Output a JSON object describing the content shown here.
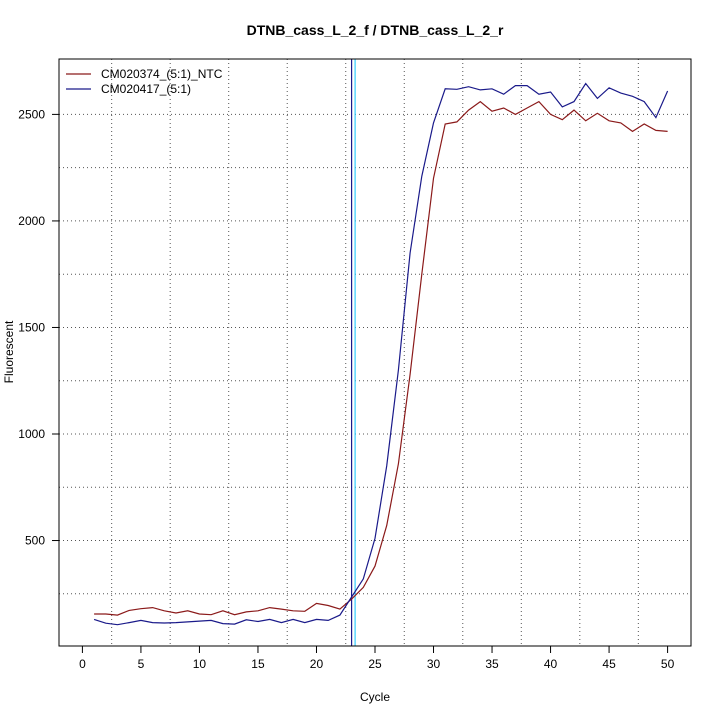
{
  "chart_data": {
    "type": "line",
    "title": "DTNB_cass_L_2_f / DTNB_cass_L_2_r",
    "xlabel": "Cycle",
    "ylabel": "Fluorescent",
    "xlim": [
      -2,
      52
    ],
    "ylim": [
      5,
      2760
    ],
    "x_ticks": [
      0,
      5,
      10,
      15,
      20,
      25,
      30,
      35,
      40,
      45,
      50
    ],
    "x_tick_labels": [
      "0",
      "5",
      "10",
      "15",
      "20",
      "25",
      "30",
      "35",
      "40",
      "45",
      "50"
    ],
    "y_ticks": [
      500,
      1000,
      1500,
      2000,
      2500
    ],
    "y_tick_labels": [
      "500",
      "1000",
      "1500",
      "2000",
      "2500"
    ],
    "grid": true,
    "x_grid_values": [
      2.5,
      7.5,
      12.5,
      17.5,
      22.5,
      27.5,
      32.5,
      37.5,
      42.5,
      47.5
    ],
    "y_grid_values": [
      250,
      500,
      750,
      1000,
      1250,
      1500,
      1750,
      2000,
      2250,
      2500
    ],
    "threshold_lines": [
      {
        "x": 23.0,
        "color": "#1a1a8a"
      },
      {
        "x": 23.3,
        "color": "#33ccff"
      }
    ],
    "legend_position": "top-left",
    "x": [
      1,
      2,
      3,
      4,
      5,
      6,
      7,
      8,
      9,
      10,
      11,
      12,
      13,
      14,
      15,
      16,
      17,
      18,
      19,
      20,
      21,
      22,
      23,
      24,
      25,
      26,
      27,
      28,
      29,
      30,
      31,
      32,
      33,
      34,
      35,
      36,
      37,
      38,
      39,
      40,
      41,
      42,
      43,
      44,
      45,
      46,
      47,
      48,
      49,
      50
    ],
    "series": [
      {
        "name": "CM020374_(5:1)_NTC",
        "color": "#8b1a1a",
        "values": [
          155,
          155,
          150,
          172,
          180,
          185,
          170,
          160,
          170,
          155,
          152,
          170,
          152,
          165,
          170,
          185,
          178,
          170,
          168,
          205,
          195,
          178,
          225,
          280,
          380,
          570,
          860,
          1280,
          1750,
          2200,
          2455,
          2465,
          2520,
          2560,
          2515,
          2530,
          2500,
          2530,
          2560,
          2500,
          2475,
          2520,
          2470,
          2505,
          2470,
          2460,
          2420,
          2455,
          2425,
          2420
        ]
      },
      {
        "name": "CM020417_(5:1)",
        "color": "#1a1a8a",
        "values": [
          130,
          112,
          105,
          115,
          125,
          115,
          113,
          115,
          118,
          122,
          125,
          110,
          108,
          128,
          120,
          130,
          115,
          130,
          115,
          130,
          125,
          150,
          235,
          320,
          510,
          850,
          1300,
          1850,
          2210,
          2460,
          2620,
          2618,
          2630,
          2615,
          2620,
          2595,
          2635,
          2635,
          2595,
          2605,
          2535,
          2560,
          2645,
          2575,
          2625,
          2600,
          2585,
          2560,
          2485,
          2610
        ]
      }
    ]
  }
}
